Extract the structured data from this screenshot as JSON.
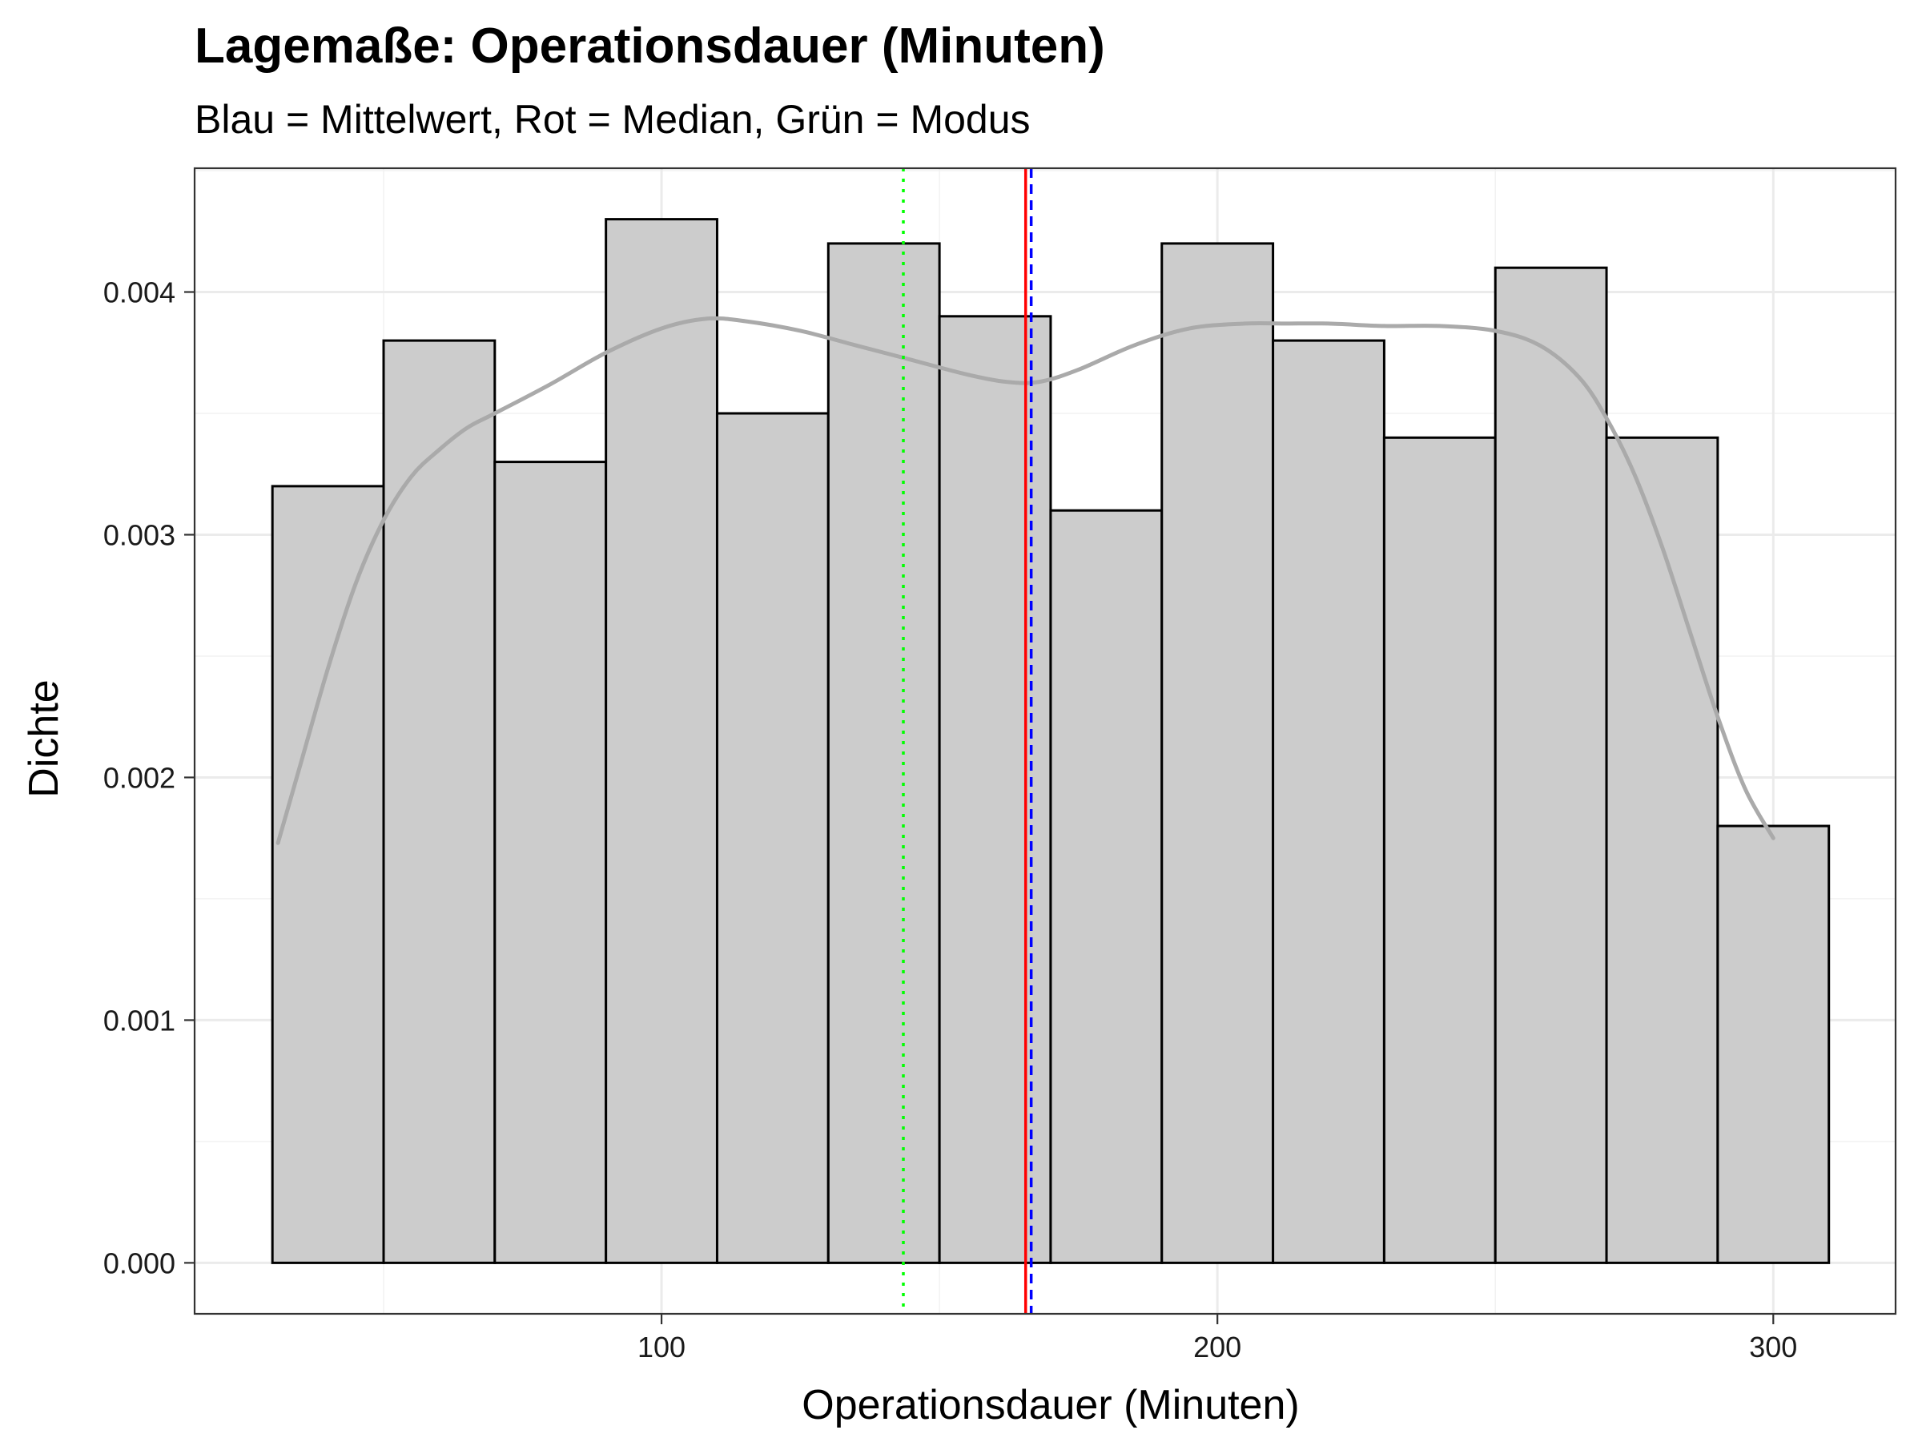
{
  "chart_data": {
    "type": "bar",
    "title": "Lagemaße: Operationsdauer (Minuten)",
    "subtitle": "Blau = Mittelwert, Rot = Median, Grün = Modus",
    "xlabel": "Operationsdauer (Minuten)",
    "ylabel": "Dichte",
    "xlim": [
      16,
      322
    ],
    "ylim": [
      -0.00021,
      0.00451
    ],
    "xticks": [
      100,
      200,
      300
    ],
    "xtick_labels": [
      "100",
      "200",
      "300"
    ],
    "yticks": [
      0,
      0.001,
      0.002,
      0.003,
      0.004
    ],
    "ytick_labels": [
      "0.000",
      "0.001",
      "0.002",
      "0.003",
      "0.004"
    ],
    "grid": true,
    "bar_color": "#cccccc",
    "bar_edge_color": "#000000",
    "bins": [
      {
        "x0": 30,
        "x1": 50,
        "density": 0.0032
      },
      {
        "x0": 50,
        "x1": 70,
        "density": 0.0038
      },
      {
        "x0": 70,
        "x1": 90,
        "density": 0.0033
      },
      {
        "x0": 90,
        "x1": 110,
        "density": 0.0043
      },
      {
        "x0": 110,
        "x1": 130,
        "density": 0.0035
      },
      {
        "x0": 130,
        "x1": 150,
        "density": 0.0042
      },
      {
        "x0": 150,
        "x1": 170,
        "density": 0.0039
      },
      {
        "x0": 170,
        "x1": 190,
        "density": 0.0031
      },
      {
        "x0": 190,
        "x1": 210,
        "density": 0.0042
      },
      {
        "x0": 210,
        "x1": 230,
        "density": 0.0038
      },
      {
        "x0": 230,
        "x1": 250,
        "density": 0.0034
      },
      {
        "x0": 250,
        "x1": 270,
        "density": 0.0041
      },
      {
        "x0": 270,
        "x1": 290,
        "density": 0.0034
      },
      {
        "x0": 290,
        "x1": 310,
        "density": 0.0018
      }
    ],
    "density_curve": {
      "color": "#aaaaaa",
      "x": [
        31,
        35,
        40,
        45,
        50,
        55,
        60,
        65,
        70,
        80,
        90,
        100,
        108,
        115,
        125,
        135,
        145,
        155,
        162,
        168,
        175,
        185,
        195,
        205,
        212,
        220,
        230,
        240,
        250,
        258,
        265,
        270,
        275,
        280,
        285,
        290,
        295,
        300
      ],
      "y": [
        0.00173,
        0.00205,
        0.00245,
        0.0028,
        0.00306,
        0.00324,
        0.00335,
        0.00344,
        0.0035,
        0.00362,
        0.00375,
        0.00385,
        0.00389,
        0.00388,
        0.00384,
        0.00378,
        0.00372,
        0.00366,
        0.00363,
        0.00363,
        0.00368,
        0.00378,
        0.00385,
        0.00387,
        0.00387,
        0.00387,
        0.00386,
        0.00386,
        0.00384,
        0.00378,
        0.00365,
        0.00348,
        0.00325,
        0.00295,
        0.0026,
        0.00225,
        0.00195,
        0.00175
      ]
    },
    "reference_lines": [
      {
        "name": "Mittelwert",
        "value": 166.5,
        "color": "#0000ff",
        "style": "dashed"
      },
      {
        "name": "Median",
        "value": 165.5,
        "color": "#ff0000",
        "style": "solid"
      },
      {
        "name": "Modus",
        "value": 143.5,
        "color": "#00ff00",
        "style": "dotted"
      }
    ]
  }
}
